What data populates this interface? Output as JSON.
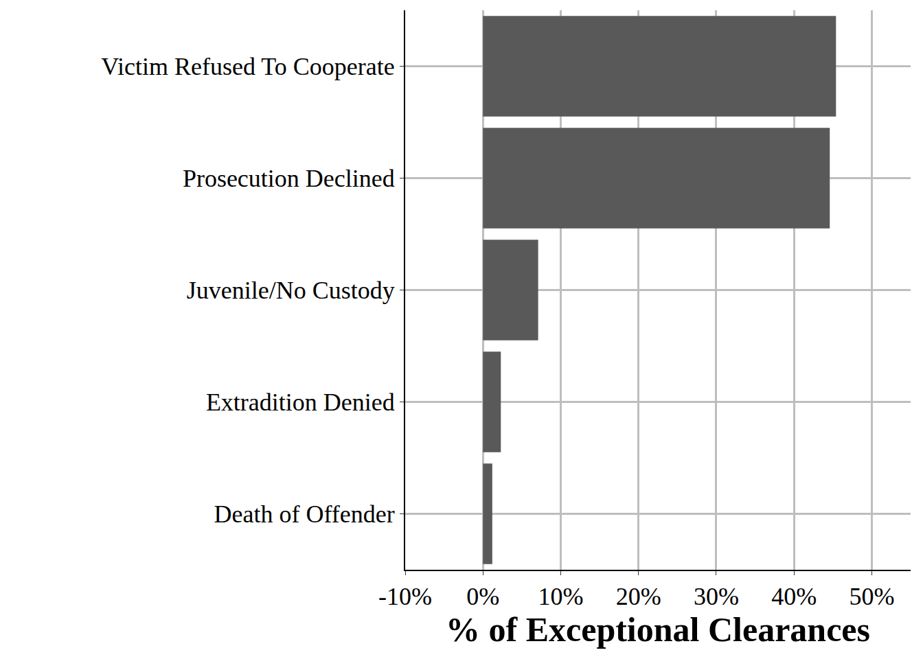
{
  "chart_data": {
    "type": "bar",
    "orientation": "horizontal",
    "x_label": "% of Exceptional Clearances",
    "categories": [
      "Victim Refused To Cooperate",
      "Prosecution Declined",
      "Juvenile/No Custody",
      "Extradition Denied",
      "Death of Offender"
    ],
    "values": [
      45.4,
      44.6,
      7.1,
      2.3,
      1.2
    ],
    "color": "#595959",
    "xlim": [
      -10,
      55
    ],
    "xticks": [
      {
        "value": -10,
        "label": "-10%"
      },
      {
        "value": 0,
        "label": "0%"
      },
      {
        "value": 10,
        "label": "10%"
      },
      {
        "value": 20,
        "label": "20%"
      },
      {
        "value": 30,
        "label": "30%"
      },
      {
        "value": 40,
        "label": "40%"
      },
      {
        "value": 50,
        "label": "50%"
      }
    ],
    "grid": true
  }
}
